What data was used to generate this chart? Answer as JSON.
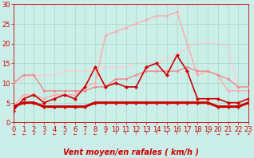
{
  "title": "",
  "xlabel": "Vent moyen/en rafales ( km/h )",
  "ylabel": "",
  "bg_color": "#cceee8",
  "grid_color": "#aaddcc",
  "xlim": [
    0,
    23
  ],
  "ylim": [
    0,
    30
  ],
  "yticks": [
    0,
    5,
    10,
    15,
    20,
    25,
    30
  ],
  "xticks": [
    0,
    1,
    2,
    3,
    4,
    5,
    6,
    7,
    8,
    9,
    10,
    11,
    12,
    13,
    14,
    15,
    16,
    17,
    18,
    19,
    20,
    21,
    22,
    23
  ],
  "series": [
    {
      "name": "flat_thick",
      "x": [
        0,
        1,
        2,
        3,
        4,
        5,
        6,
        7,
        8,
        9,
        10,
        11,
        12,
        13,
        14,
        15,
        16,
        17,
        18,
        19,
        20,
        21,
        22,
        23
      ],
      "y": [
        4,
        5,
        5,
        4,
        4,
        4,
        4,
        4,
        5,
        5,
        5,
        5,
        5,
        5,
        5,
        5,
        5,
        5,
        5,
        5,
        4,
        4,
        4,
        5
      ],
      "color": "#cc0000",
      "lw": 2.2,
      "marker": "D",
      "ms": 2.5,
      "zorder": 6
    },
    {
      "name": "volatile_dark",
      "x": [
        0,
        1,
        2,
        3,
        4,
        5,
        6,
        7,
        8,
        9,
        10,
        11,
        12,
        13,
        14,
        15,
        16,
        17,
        18,
        19,
        20,
        21,
        22,
        23
      ],
      "y": [
        3,
        6,
        7,
        5,
        6,
        7,
        6,
        9,
        14,
        9,
        10,
        9,
        9,
        14,
        15,
        12,
        17,
        13,
        6,
        6,
        6,
        5,
        5,
        6
      ],
      "color": "#cc0000",
      "lw": 1.2,
      "marker": "D",
      "ms": 2.5,
      "zorder": 5
    },
    {
      "name": "medium_pink",
      "x": [
        0,
        1,
        2,
        3,
        4,
        5,
        6,
        7,
        8,
        9,
        10,
        11,
        12,
        13,
        14,
        15,
        16,
        17,
        18,
        19,
        20,
        21,
        22,
        23
      ],
      "y": [
        10,
        12,
        12,
        8,
        8,
        8,
        8,
        8,
        9,
        9,
        11,
        11,
        12,
        13,
        13,
        13,
        13,
        14,
        13,
        13,
        12,
        11,
        9,
        9
      ],
      "color": "#ee8888",
      "lw": 1.0,
      "marker": "D",
      "ms": 2.0,
      "zorder": 3
    },
    {
      "name": "high_peak",
      "x": [
        0,
        1,
        2,
        3,
        4,
        5,
        6,
        7,
        8,
        9,
        10,
        11,
        12,
        13,
        14,
        15,
        16,
        17,
        18,
        19,
        20,
        21,
        22,
        23
      ],
      "y": [
        4,
        7,
        7,
        6,
        7,
        7,
        7,
        9,
        10,
        22,
        23,
        24,
        25,
        26,
        27,
        27,
        28,
        20,
        12,
        13,
        12,
        8,
        8,
        8
      ],
      "color": "#ffaaaa",
      "lw": 1.0,
      "marker": "D",
      "ms": 2.0,
      "zorder": 2
    },
    {
      "name": "slow_rise",
      "x": [
        0,
        1,
        2,
        3,
        4,
        5,
        6,
        7,
        8,
        9,
        10,
        11,
        12,
        13,
        14,
        15,
        16,
        17,
        18,
        19,
        20,
        21,
        22,
        23
      ],
      "y": [
        10,
        11,
        12,
        12,
        12,
        13,
        13,
        13,
        13,
        14,
        14,
        14,
        15,
        15,
        15,
        16,
        17,
        19,
        20,
        20,
        20,
        19,
        9,
        9
      ],
      "color": "#ffcccc",
      "lw": 1.0,
      "marker": null,
      "ms": 0,
      "zorder": 1
    }
  ],
  "arrow_chars": [
    "→",
    "←",
    "↙",
    "↙",
    "←",
    "↙",
    "←",
    "↙",
    "←",
    "↑",
    "↑",
    "↑",
    "↑",
    "↑",
    "↑",
    "↑",
    "↑",
    "↑",
    "↑",
    "↗",
    "→",
    "←",
    "↙",
    "↙"
  ],
  "label_fontsize": 7,
  "tick_fontsize": 6
}
